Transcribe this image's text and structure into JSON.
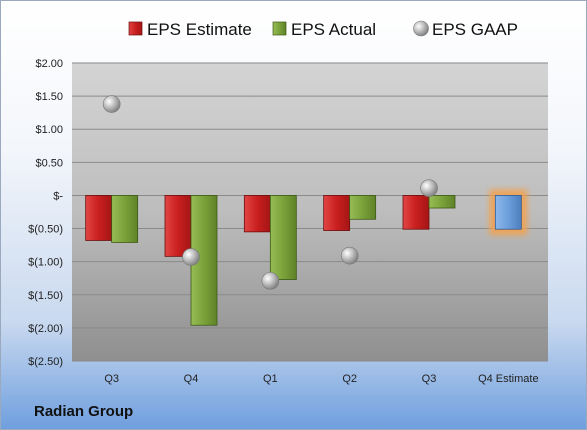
{
  "company": "Radian Group",
  "colors": {
    "estimate": "#cc2a2a",
    "actual": "#7aa23a",
    "gaap": "#b8b8b8",
    "future_estimate": "#6fa0dc",
    "future_glow": "#f5a04a"
  },
  "chart_data": {
    "type": "bar",
    "categories": [
      "Q3",
      "Q4",
      "Q1",
      "Q2",
      "Q3",
      "Q4 Estimate"
    ],
    "series": [
      {
        "name": "EPS Estimate",
        "marker": "bar",
        "values": [
          -0.68,
          -0.92,
          -0.55,
          -0.53,
          -0.51,
          -0.51
        ]
      },
      {
        "name": "EPS Actual",
        "marker": "bar",
        "values": [
          -0.71,
          -1.96,
          -1.27,
          -0.36,
          -0.19,
          null
        ]
      },
      {
        "name": "EPS GAAP",
        "marker": "point",
        "values": [
          1.38,
          -0.93,
          -1.29,
          -0.91,
          0.11,
          null
        ]
      }
    ],
    "yticks": [
      "$2.00",
      "$1.50",
      "$1.00",
      "$0.50",
      "$-",
      "$(0.50)",
      "$(1.00)",
      "$(1.50)",
      "$(2.00)",
      "$(2.50)"
    ],
    "ylim": [
      -2.5,
      2.0
    ],
    "ystep": 0.5,
    "grid": true,
    "legend_position": "top",
    "highlighted_category": "Q4 Estimate"
  }
}
